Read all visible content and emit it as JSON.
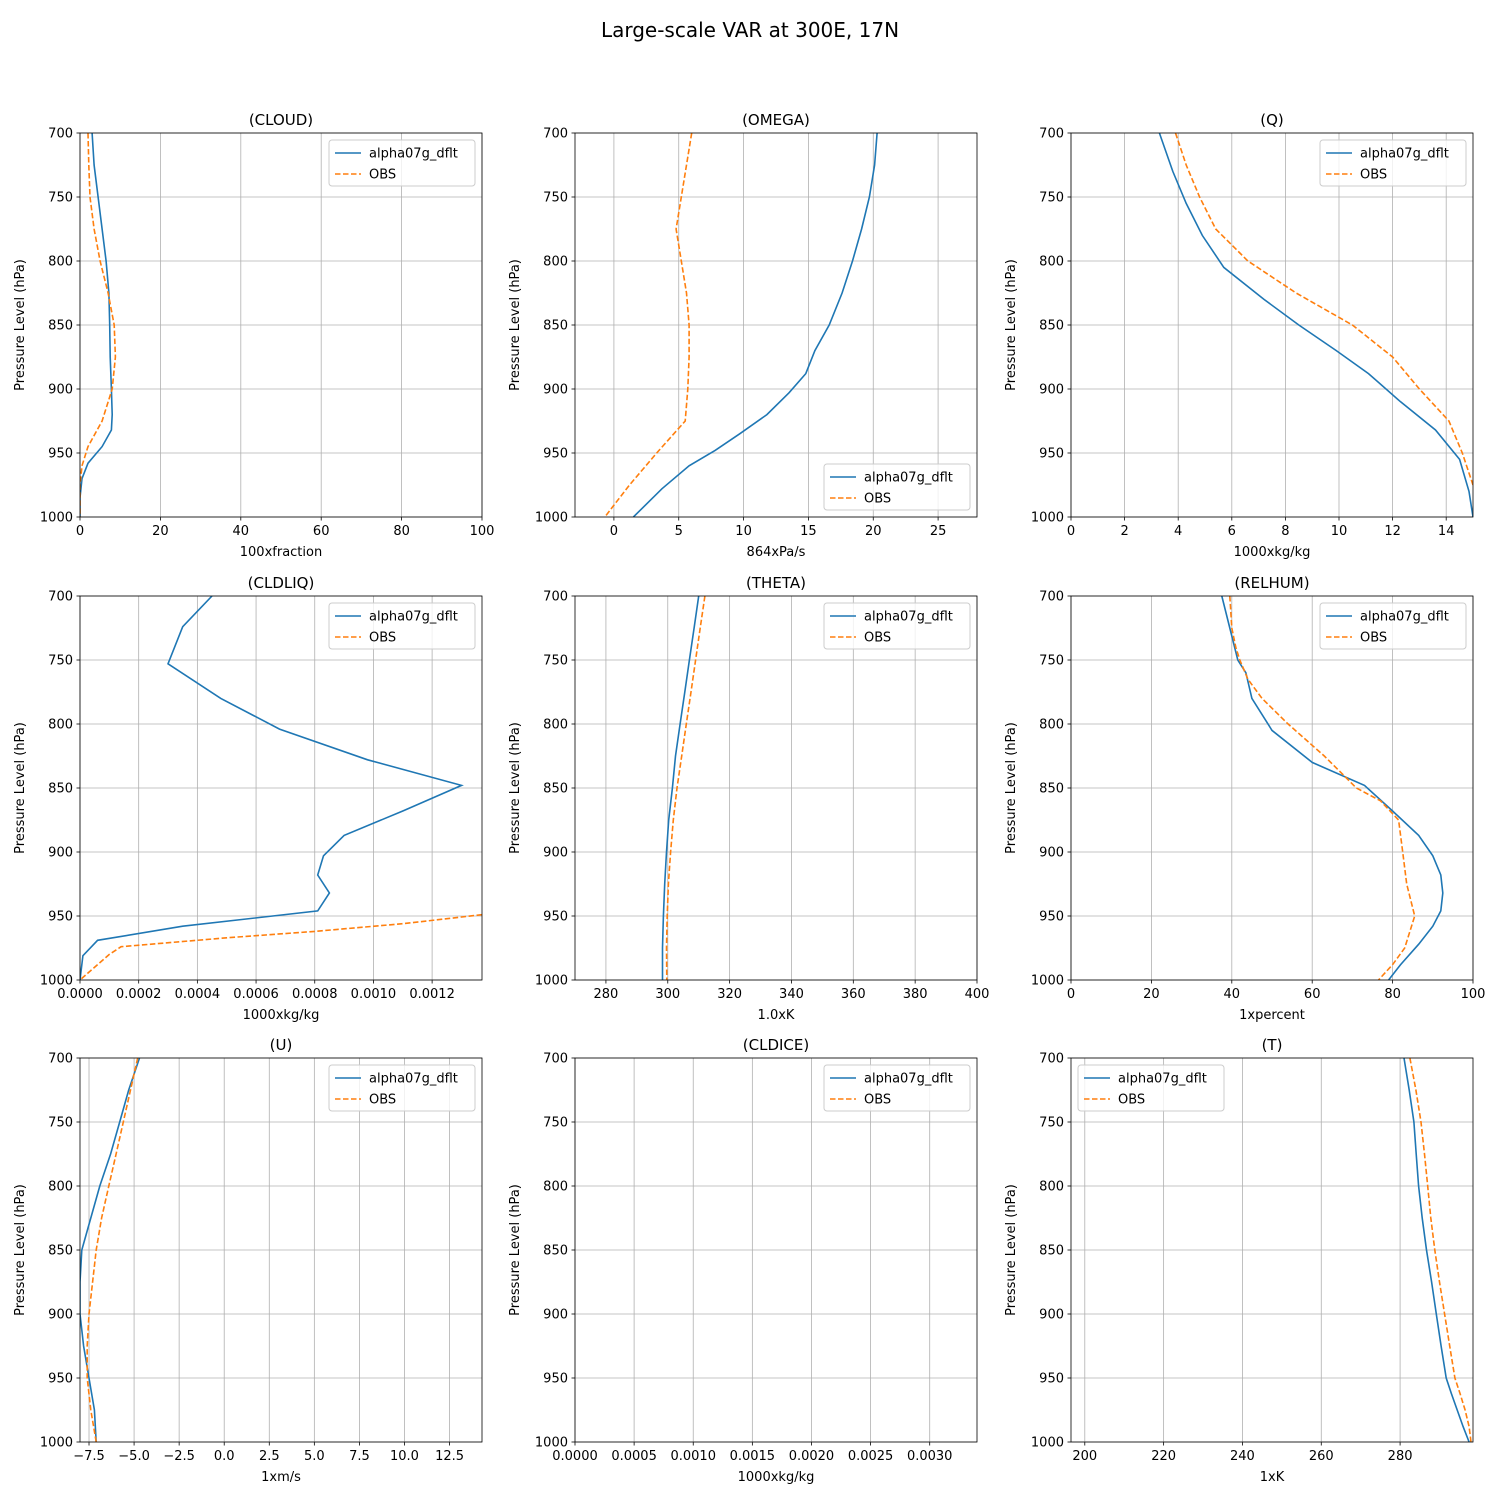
{
  "figure": {
    "title": "Large-scale VAR at 300E, 17N"
  },
  "legend_labels": [
    "alpha07g_dflt",
    "OBS"
  ],
  "chart_data": [
    {
      "type": "line",
      "title": "(CLOUD)",
      "xlabel": "100xfraction",
      "ylabel": "Pressure Level (hPa)",
      "xlim": [
        0,
        100
      ],
      "ylim": [
        1000,
        700
      ],
      "xticks": [
        0,
        20,
        40,
        60,
        80,
        100
      ],
      "xtick_labels": [
        "0",
        "20",
        "40",
        "60",
        "80",
        "100"
      ],
      "yticks": [
        700,
        750,
        800,
        850,
        900,
        950,
        1000
      ],
      "grid": true,
      "legend": "upper right",
      "series": [
        {
          "name": "alpha07g_dflt",
          "style": "solid",
          "color": "#1f77b4",
          "x": [
            3,
            3.5,
            4.5,
            5.5,
            6.5,
            7.2,
            7.4,
            7.5,
            7.8,
            8,
            7.8,
            5.5,
            2,
            0.5,
            0,
            0
          ],
          "y": [
            700,
            725,
            750,
            775,
            800,
            825,
            850,
            875,
            900,
            920,
            932,
            945,
            958,
            970,
            985,
            1000
          ]
        },
        {
          "name": "OBS",
          "style": "dashed",
          "color": "#ff7f0e",
          "x": [
            2,
            2.2,
            2.5,
            3.5,
            5,
            7,
            8.5,
            8.8,
            8,
            5.5,
            2,
            0.5,
            0,
            0
          ],
          "y": [
            700,
            725,
            750,
            775,
            800,
            825,
            850,
            875,
            900,
            925,
            945,
            960,
            975,
            1000
          ]
        }
      ]
    },
    {
      "type": "line",
      "title": "(OMEGA)",
      "xlabel": "864xPa/s",
      "ylabel": "Pressure Level (hPa)",
      "xlim": [
        -3,
        28
      ],
      "ylim": [
        1000,
        700
      ],
      "xticks": [
        0,
        5,
        10,
        15,
        20,
        25
      ],
      "xtick_labels": [
        "0",
        "5",
        "10",
        "15",
        "20",
        "25"
      ],
      "yticks": [
        700,
        750,
        800,
        850,
        900,
        950,
        1000
      ],
      "grid": true,
      "legend": "lower right",
      "series": [
        {
          "name": "alpha07g_dflt",
          "style": "solid",
          "color": "#1f77b4",
          "x": [
            20.3,
            20.1,
            19.7,
            19.1,
            18.4,
            17.6,
            16.6,
            15.5,
            14.8,
            13.5,
            11.8,
            9.7,
            7.8,
            5.8,
            3.7,
            1.5
          ],
          "y": [
            700,
            725,
            750,
            775,
            800,
            825,
            850,
            870,
            888,
            903,
            920,
            935,
            948,
            960,
            978,
            1000
          ]
        },
        {
          "name": "OBS",
          "style": "dashed",
          "color": "#ff7f0e",
          "x": [
            6,
            5.6,
            5.2,
            4.8,
            5.2,
            5.6,
            5.8,
            5.8,
            5.7,
            5.5,
            3.3,
            1.2,
            -0.7
          ],
          "y": [
            700,
            725,
            750,
            775,
            800,
            825,
            850,
            875,
            900,
            925,
            950,
            975,
            1000
          ]
        }
      ]
    },
    {
      "type": "line",
      "title": "(Q)",
      "xlabel": "1000xkg/kg",
      "ylabel": "Pressure Level (hPa)",
      "xlim": [
        0,
        15
      ],
      "ylim": [
        1000,
        700
      ],
      "xticks": [
        0,
        2,
        4,
        6,
        8,
        10,
        12,
        14
      ],
      "xtick_labels": [
        "0",
        "2",
        "4",
        "6",
        "8",
        "10",
        "12",
        "14"
      ],
      "yticks": [
        700,
        750,
        800,
        850,
        900,
        950,
        1000
      ],
      "grid": true,
      "legend": "upper right",
      "series": [
        {
          "name": "alpha07g_dflt",
          "style": "solid",
          "color": "#1f77b4",
          "x": [
            3.3,
            3.8,
            4.3,
            4.9,
            5.7,
            7.2,
            8.5,
            9.9,
            11.1,
            12.3,
            13.6,
            14.5,
            14.85,
            15.0
          ],
          "y": [
            700,
            730,
            755,
            780,
            805,
            830,
            850,
            870,
            888,
            910,
            932,
            955,
            980,
            1000
          ]
        },
        {
          "name": "OBS",
          "style": "dashed",
          "color": "#ff7f0e",
          "x": [
            3.9,
            4.3,
            4.8,
            5.4,
            6.6,
            8.4,
            10.5,
            12.0,
            13.0,
            14.1,
            14.6,
            15.0
          ],
          "y": [
            700,
            725,
            750,
            775,
            800,
            825,
            850,
            875,
            900,
            925,
            950,
            975
          ]
        }
      ]
    },
    {
      "type": "line",
      "title": "(CLDLIQ)",
      "xlabel": "1000xkg/kg",
      "ylabel": "Pressure Level (hPa)",
      "xlim": [
        0,
        0.00137
      ],
      "ylim": [
        1000,
        700
      ],
      "xticks": [
        0,
        0.0002,
        0.0004,
        0.0006,
        0.0008,
        0.001,
        0.0012
      ],
      "xtick_labels": [
        "0.0000",
        "0.0002",
        "0.0004",
        "0.0006",
        "0.0008",
        "0.0010",
        "0.0012"
      ],
      "yticks": [
        700,
        750,
        800,
        850,
        900,
        950,
        1000
      ],
      "grid": true,
      "legend": "upper right",
      "series": [
        {
          "name": "alpha07g_dflt",
          "style": "solid",
          "color": "#1f77b4",
          "x": [
            0.00045,
            0.00035,
            0.0003,
            0.00048,
            0.00068,
            0.00098,
            0.0013,
            0.0011,
            0.0009,
            0.00083,
            0.00081,
            0.00085,
            0.00081,
            0.00035,
            6e-05,
            1e-05,
            0
          ],
          "y": [
            700,
            724,
            753,
            780,
            804,
            828,
            848,
            868,
            887,
            903,
            918,
            932,
            946,
            958,
            969,
            981,
            1000
          ]
        },
        {
          "name": "OBS",
          "style": "dashed",
          "color": "#ff7f0e",
          "x": [
            0.00137,
            0.0011,
            0.0008,
            0.0005,
            0.00014,
            0.0001,
            0
          ],
          "y": [
            949,
            956,
            962,
            967,
            974,
            980,
            1000
          ]
        }
      ]
    },
    {
      "type": "line",
      "title": "(THETA)",
      "xlabel": "1.0xK",
      "ylabel": "Pressure Level (hPa)",
      "xlim": [
        270,
        400
      ],
      "ylim": [
        1000,
        700
      ],
      "xticks": [
        280,
        300,
        320,
        340,
        360,
        380,
        400
      ],
      "xtick_labels": [
        "280",
        "300",
        "320",
        "340",
        "360",
        "380",
        "400"
      ],
      "yticks": [
        700,
        750,
        800,
        850,
        900,
        950,
        1000
      ],
      "grid": true,
      "legend": "upper right",
      "series": [
        {
          "name": "alpha07g_dflt",
          "style": "solid",
          "color": "#1f77b4",
          "x": [
            310,
            308.5,
            307,
            305.5,
            304,
            302.5,
            301.5,
            300.3,
            299.6,
            299,
            298.6,
            298.3,
            298.3
          ],
          "y": [
            700,
            725,
            750,
            775,
            800,
            825,
            850,
            875,
            900,
            925,
            950,
            975,
            1000
          ]
        },
        {
          "name": "OBS",
          "style": "dashed",
          "color": "#ff7f0e",
          "x": [
            312,
            310.5,
            309,
            307.5,
            306,
            304.5,
            303,
            301.8,
            300.9,
            300.2,
            299.8,
            299.6,
            299.7
          ],
          "y": [
            700,
            725,
            750,
            775,
            800,
            825,
            850,
            875,
            900,
            925,
            950,
            975,
            1000
          ]
        }
      ]
    },
    {
      "type": "line",
      "title": "(RELHUM)",
      "xlabel": "1xpercent",
      "ylabel": "Pressure Level (hPa)",
      "xlim": [
        0,
        100
      ],
      "ylim": [
        1000,
        700
      ],
      "xticks": [
        0,
        20,
        40,
        60,
        80,
        100
      ],
      "xtick_labels": [
        "0",
        "20",
        "40",
        "60",
        "80",
        "100"
      ],
      "yticks": [
        700,
        750,
        800,
        850,
        900,
        950,
        1000
      ],
      "grid": true,
      "legend": "upper right",
      "series": [
        {
          "name": "alpha07g_dflt",
          "style": "solid",
          "color": "#1f77b4",
          "x": [
            37.5,
            39.5,
            41.5,
            43.5,
            45,
            50,
            60,
            73,
            80,
            86.5,
            90,
            92,
            92.5,
            92,
            90,
            86.5,
            82,
            79
          ],
          "y": [
            700,
            725,
            750,
            760,
            780,
            805,
            830,
            848,
            868,
            887,
            903,
            918,
            932,
            946,
            958,
            972,
            988,
            1000
          ]
        },
        {
          "name": "OBS",
          "style": "dashed",
          "color": "#ff7f0e",
          "x": [
            39.5,
            40,
            41,
            42,
            44,
            47.5,
            54,
            63,
            71,
            77,
            81.5,
            82.5,
            83.5,
            85.5,
            83,
            80,
            76.5
          ],
          "y": [
            700,
            725,
            740,
            750,
            765,
            780,
            800,
            825,
            850,
            860,
            875,
            900,
            925,
            950,
            975,
            988,
            1000
          ]
        }
      ]
    },
    {
      "type": "line",
      "title": "(U)",
      "xlabel": "1xm/s",
      "ylabel": "Pressure Level (hPa)",
      "xlim": [
        -8,
        14.3
      ],
      "ylim": [
        1000,
        700
      ],
      "xticks": [
        -7.5,
        -5,
        -2.5,
        0,
        2.5,
        5,
        7.5,
        10,
        12.5
      ],
      "xtick_labels": [
        "−7.5",
        "−5.0",
        "−2.5",
        "0.0",
        "2.5",
        "5.0",
        "7.5",
        "10.0",
        "12.5"
      ],
      "yticks": [
        700,
        750,
        800,
        850,
        900,
        950,
        1000
      ],
      "grid": true,
      "legend": "upper right",
      "series": [
        {
          "name": "alpha07g_dflt",
          "style": "solid",
          "color": "#1f77b4",
          "x": [
            -4.7,
            -5.3,
            -5.8,
            -6.3,
            -6.9,
            -7.4,
            -7.9,
            -8.0,
            -8.0,
            -7.8,
            -7.5,
            -7.2,
            -7.1
          ],
          "y": [
            700,
            725,
            750,
            775,
            800,
            825,
            850,
            875,
            900,
            925,
            950,
            975,
            1000
          ]
        },
        {
          "name": "OBS",
          "style": "dashed",
          "color": "#ff7f0e",
          "x": [
            -4.8,
            -5.2,
            -5.6,
            -6.0,
            -6.4,
            -6.8,
            -7.1,
            -7.3,
            -7.5,
            -7.6,
            -7.6,
            -7.4,
            -7.1
          ],
          "y": [
            700,
            725,
            750,
            775,
            800,
            825,
            850,
            875,
            900,
            925,
            950,
            975,
            1000
          ]
        }
      ]
    },
    {
      "type": "line",
      "title": "(CLDICE)",
      "xlabel": "1000xkg/kg",
      "ylabel": "Pressure Level (hPa)",
      "xlim": [
        0,
        0.0034
      ],
      "ylim": [
        1000,
        700
      ],
      "xticks": [
        0,
        0.0005,
        0.001,
        0.0015,
        0.002,
        0.0025,
        0.003
      ],
      "xtick_labels": [
        "0.0000",
        "0.0005",
        "0.0010",
        "0.0015",
        "0.0020",
        "0.0025",
        "0.0030"
      ],
      "yticks": [
        700,
        750,
        800,
        850,
        900,
        950,
        1000
      ],
      "grid": true,
      "legend": "upper right",
      "series": [
        {
          "name": "alpha07g_dflt",
          "style": "solid",
          "color": "#1f77b4",
          "x": [],
          "y": []
        },
        {
          "name": "OBS",
          "style": "dashed",
          "color": "#ff7f0e",
          "x": [],
          "y": []
        }
      ]
    },
    {
      "type": "line",
      "title": "(T)",
      "xlabel": "1xK",
      "ylabel": "Pressure Level (hPa)",
      "xlim": [
        196.5,
        298.5
      ],
      "ylim": [
        1000,
        700
      ],
      "xticks": [
        200,
        220,
        240,
        260,
        280
      ],
      "xtick_labels": [
        "200",
        "220",
        "240",
        "260",
        "280"
      ],
      "yticks": [
        700,
        750,
        800,
        850,
        900,
        950,
        1000
      ],
      "grid": true,
      "legend": "upper left",
      "series": [
        {
          "name": "alpha07g_dflt",
          "style": "solid",
          "color": "#1f77b4",
          "x": [
            281,
            282.3,
            283.5,
            284.1,
            284.7,
            285.6,
            286.7,
            288,
            289.2,
            290.4,
            291.7,
            293,
            294.5,
            296,
            297.5
          ],
          "y": [
            700,
            725,
            750,
            775,
            800,
            825,
            850,
            875,
            900,
            925,
            950,
            962,
            975,
            988,
            1000
          ]
        },
        {
          "name": "OBS",
          "style": "dashed",
          "color": "#ff7f0e",
          "x": [
            282.5,
            284,
            285.3,
            286.2,
            287,
            287.8,
            288.8,
            290,
            291.3,
            292.6,
            293.9,
            295.2,
            296.5,
            297.5,
            298
          ],
          "y": [
            700,
            725,
            750,
            775,
            800,
            825,
            850,
            875,
            900,
            925,
            950,
            962,
            975,
            988,
            1000
          ]
        }
      ]
    }
  ]
}
